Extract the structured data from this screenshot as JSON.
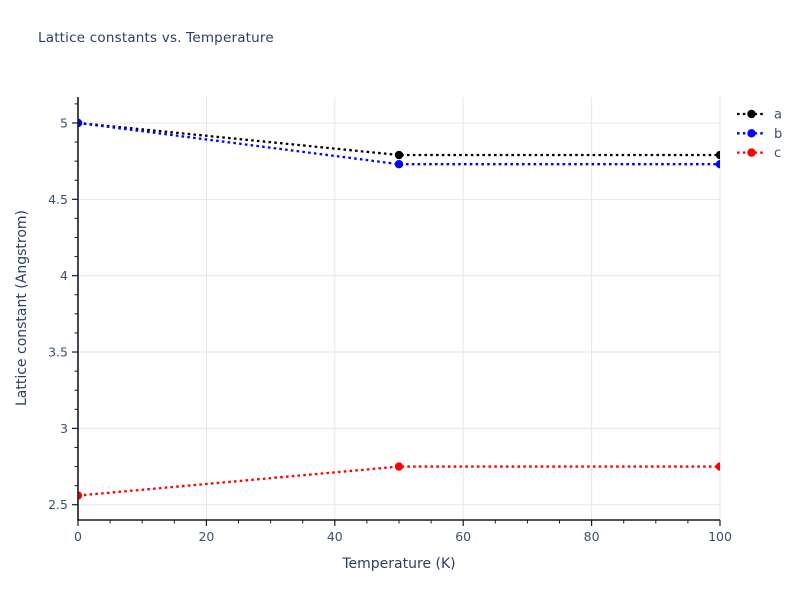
{
  "chart_data": {
    "type": "line",
    "title": "Lattice constants vs. Temperature",
    "xlabel": "Temperature (K)",
    "ylabel": "Lattice constant (Angstrom)",
    "x": [
      0,
      50,
      100
    ],
    "series": [
      {
        "name": "a",
        "color": "#000000",
        "values": [
          5.0,
          4.79,
          4.79
        ]
      },
      {
        "name": "b",
        "color": "#0000ff",
        "values": [
          5.0,
          4.73,
          4.73
        ]
      },
      {
        "name": "c",
        "color": "#ff0000",
        "values": [
          2.56,
          2.75,
          2.75
        ]
      }
    ],
    "xlim": [
      0,
      100
    ],
    "ylim": [
      2.4,
      5.17
    ],
    "x_major_ticks": [
      0,
      20,
      40,
      60,
      80,
      100
    ],
    "x_minor_step": 5,
    "y_major_ticks": [
      2.5,
      3,
      3.5,
      4,
      4.5,
      5
    ],
    "y_minor_step": 0.125,
    "grid": true,
    "line_style": "dotted",
    "marker": "circle",
    "legend_position": "top-right-outside",
    "legend_entries": [
      "a",
      "b",
      "c"
    ]
  },
  "colors": {
    "title_text": "#2a3f5f",
    "axis_title_text": "#2a3f5f",
    "tick_text": "#3e506e",
    "axis_line": "#161b22",
    "grid_line": "#e6e6e6",
    "background": "#ffffff"
  }
}
